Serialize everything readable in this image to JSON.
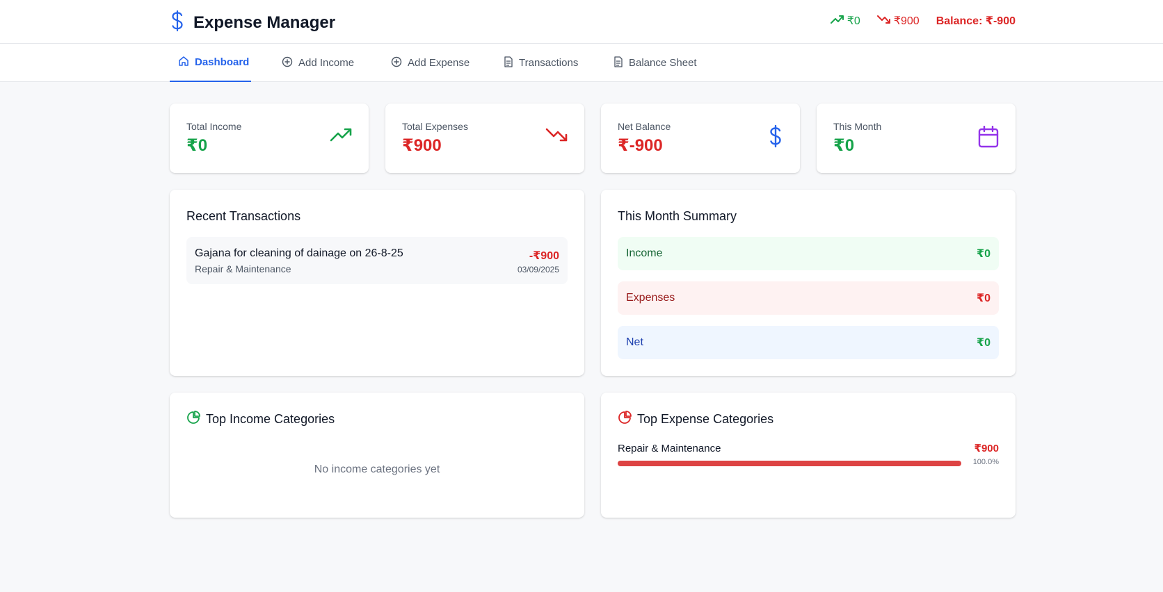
{
  "app": {
    "title": "Expense Manager"
  },
  "header": {
    "income": "₹0",
    "expense": "₹900",
    "balance": "Balance: ₹-900"
  },
  "nav": {
    "tabs": [
      {
        "label": "Dashboard",
        "icon": "home-icon",
        "active": true
      },
      {
        "label": "Add Income",
        "icon": "plus-circle-icon"
      },
      {
        "label": "Add Expense",
        "icon": "plus-circle-icon"
      },
      {
        "label": "Transactions",
        "icon": "document-icon"
      },
      {
        "label": "Balance Sheet",
        "icon": "document-icon"
      }
    ]
  },
  "stats": [
    {
      "label": "Total Income",
      "value": "₹0",
      "color": "#16a34a",
      "icon": "trending-up-icon"
    },
    {
      "label": "Total Expenses",
      "value": "₹900",
      "color": "#dc2626",
      "icon": "trending-down-icon"
    },
    {
      "label": "Net Balance",
      "value": "₹-900",
      "color": "#dc2626",
      "icon": "dollar-icon"
    },
    {
      "label": "This Month",
      "value": "₹0",
      "color": "#16a34a",
      "icon": "calendar-icon"
    }
  ],
  "recent": {
    "title": "Recent Transactions",
    "items": [
      {
        "description": "Gajana for cleaning of dainage on 26-8-25",
        "category": "Repair & Maintenance",
        "amount": "-₹900",
        "date": "03/09/2025"
      }
    ]
  },
  "summary": {
    "title": "This Month Summary",
    "rows": [
      {
        "label": "Income",
        "value": "₹0"
      },
      {
        "label": "Expenses",
        "value": "₹0"
      },
      {
        "label": "Net",
        "value": "₹0"
      }
    ]
  },
  "income_categories": {
    "title": "Top Income Categories",
    "empty": "No income categories yet"
  },
  "expense_categories": {
    "title": "Top Expense Categories",
    "items": [
      {
        "name": "Repair & Maintenance",
        "amount": "₹900",
        "percent_label": "100.0%",
        "fraction": 1.0
      }
    ]
  },
  "colors": {
    "accent": "#2563eb",
    "income": "#16a34a",
    "expense": "#dc2626",
    "purple": "#9333ea"
  }
}
